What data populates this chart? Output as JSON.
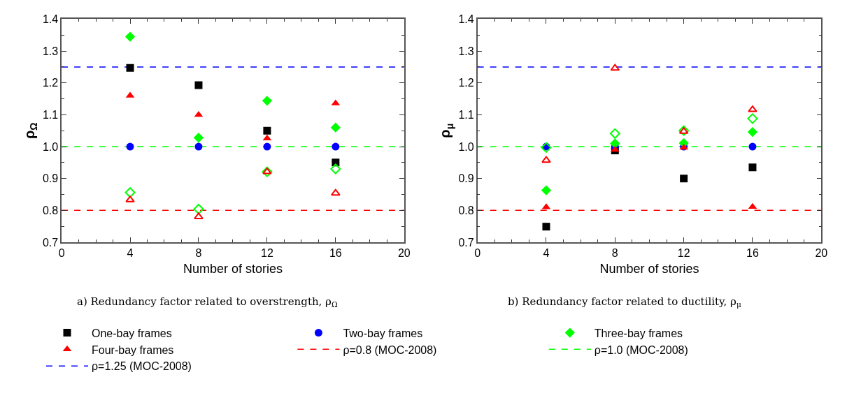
{
  "chart_data": [
    {
      "type": "scatter",
      "title": "a) Redundancy factor related to overstrength, ρ$_{Ω}$",
      "xlabel": "Number of stories",
      "ylabel": "ρ$_{Ω}$",
      "x": [
        4,
        8,
        12,
        16
      ],
      "xlim": [
        0,
        20
      ],
      "xticks": [
        0,
        4,
        8,
        12,
        16,
        20
      ],
      "ylim": [
        0.7,
        1.4
      ],
      "yticks": [
        {
          "value": 0.7,
          "label": "0.7"
        },
        {
          "value": 0.8,
          "label": "0.8"
        },
        {
          "value": 0.9,
          "label": "0.9"
        },
        {
          "value": 1.0,
          "label": "1.0"
        },
        {
          "value": 1.1,
          "label": "1.1"
        },
        {
          "value": 1.2,
          "label": "1.2"
        },
        {
          "value": 1.3,
          "label": "1.3"
        },
        {
          "value": 1.4,
          "label": "1.4"
        }
      ],
      "legend": "bottom",
      "series": [
        {
          "name": "One-bay frames",
          "color": "#000000",
          "marker": "square",
          "values": [
            1.247,
            1.193,
            1.05,
            0.95
          ]
        },
        {
          "name": "Two-bay frames",
          "color": "#0000ff",
          "marker": "circle",
          "values": [
            1.0,
            1.0,
            1.0,
            1.0
          ]
        },
        {
          "name": "Three-bay frames",
          "color": "#00ff00",
          "marker": "diamond",
          "values": [
            1.345,
            1.028,
            1.144,
            1.06
          ]
        },
        {
          "name": "Four-bay frames",
          "color": "#ff0000",
          "marker": "triangle",
          "values": [
            1.16,
            1.1,
            1.026,
            1.136
          ]
        },
        {
          "color": "#00ff00",
          "marker": "diamond",
          "values": [
            0.856,
            0.804,
            0.921,
            0.93
          ]
        },
        {
          "color": "#ff0000",
          "marker": "triangle",
          "values": [
            0.833,
            0.78,
            0.921,
            0.854
          ]
        }
      ],
      "ref_lines": [
        {
          "axis": "y",
          "value": 0.8,
          "label": "ρ=0.8 (MOC-2008)",
          "color": "#ff0000",
          "line_style": "dashed"
        },
        {
          "axis": "y",
          "value": 1.0,
          "label": "ρ=1.0 (MOC-2008)",
          "color": "#00ff00",
          "line_style": "dashed"
        },
        {
          "axis": "y",
          "value": 1.25,
          "label": "ρ=1.25 (MOC-2008)",
          "color": "#0000ff",
          "line_style": "dashed"
        }
      ]
    },
    {
      "type": "scatter",
      "title": "b) Redundancy factor related to ductility, ρ$_{μ}$",
      "xlabel": "Number of stories",
      "ylabel": "ρ$_{μ}$",
      "x": [
        4,
        8,
        12,
        16
      ],
      "xlim": [
        0,
        20
      ],
      "xticks": [
        0,
        4,
        8,
        12,
        16,
        20
      ],
      "ylim": [
        0.7,
        1.4
      ],
      "yticks": [
        {
          "value": 0.7,
          "label": "0.7"
        },
        {
          "value": 0.8,
          "label": "0.8"
        },
        {
          "value": 0.9,
          "label": "0.9"
        },
        {
          "value": 1.0,
          "label": "1.0"
        },
        {
          "value": 1.1,
          "label": "1.1"
        },
        {
          "value": 1.2,
          "label": "1.2"
        },
        {
          "value": 1.3,
          "label": "1.3"
        },
        {
          "value": 1.4,
          "label": "1.4"
        }
      ],
      "series": [
        {
          "name": "One-bay frames",
          "color": "#000000",
          "marker": "square",
          "values": [
            0.749,
            0.988,
            0.9,
            0.935
          ]
        },
        {
          "name": "Two-bay frames",
          "color": "#0000ff",
          "marker": "circle",
          "values": [
            1.0,
            1.0,
            1.0,
            1.0
          ]
        },
        {
          "name": "Three-bay frames",
          "color": "#00ff00",
          "marker": "diamond",
          "values": [
            0.863,
            1.01,
            1.011,
            1.046
          ]
        },
        {
          "name": "Four-bay frames",
          "color": "#ff0000",
          "marker": "triangle",
          "values": [
            0.81,
            0.99,
            0.997,
            0.811
          ]
        },
        {
          "color": "#00ff00",
          "marker": "diamond",
          "values": [
            0.997,
            1.041,
            1.05,
            1.088
          ]
        },
        {
          "color": "#ff0000",
          "marker": "triangle",
          "values": [
            0.957,
            1.246,
            1.048,
            1.116
          ]
        }
      ],
      "ref_lines": [
        {
          "axis": "y",
          "value": 0.8,
          "color": "#ff0000",
          "line_style": "dashed"
        },
        {
          "axis": "y",
          "value": 1.0,
          "color": "#00ff00",
          "line_style": "dashed"
        },
        {
          "axis": "y",
          "value": 1.25,
          "color": "#0000ff",
          "line_style": "dashed"
        }
      ]
    }
  ]
}
